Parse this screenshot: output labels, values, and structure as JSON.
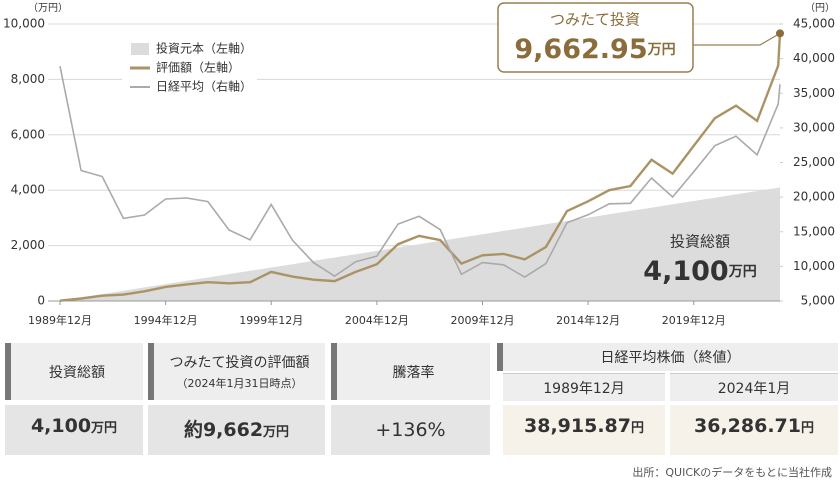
{
  "chart_data": {
    "type": "line",
    "left_axis_unit": "（万円）",
    "right_axis_unit": "（円）",
    "x": [
      "1989-12",
      "1990-12",
      "1991-12",
      "1992-12",
      "1993-12",
      "1994-12",
      "1995-12",
      "1996-12",
      "1997-12",
      "1998-12",
      "1999-12",
      "2000-12",
      "2001-12",
      "2002-12",
      "2003-12",
      "2004-12",
      "2005-12",
      "2006-12",
      "2007-12",
      "2008-12",
      "2009-12",
      "2010-12",
      "2011-12",
      "2012-12",
      "2013-12",
      "2014-12",
      "2015-12",
      "2016-12",
      "2017-12",
      "2018-12",
      "2019-12",
      "2020-12",
      "2021-12",
      "2022-12",
      "2023-12",
      "2024-01"
    ],
    "xlim": [
      "1989-12",
      "2024-01"
    ],
    "xticks": [
      {
        "value": "1989-12",
        "label": "1989年12月"
      },
      {
        "value": "1994-12",
        "label": "1994年12月"
      },
      {
        "value": "1999-12",
        "label": "1999年12月"
      },
      {
        "value": "2004-12",
        "label": "2004年12月"
      },
      {
        "value": "2009-12",
        "label": "2009年12月"
      },
      {
        "value": "2014-12",
        "label": "2014年12月"
      },
      {
        "value": "2019-12",
        "label": "2019年12月"
      }
    ],
    "ylim": [
      0,
      10000
    ],
    "yticks": [
      0,
      {
        "value": 2000,
        "label": "2,000"
      },
      {
        "value": 4000,
        "label": "4,000"
      },
      {
        "value": 6000,
        "label": "6,000"
      },
      {
        "value": 8000,
        "label": "8,000"
      },
      {
        "value": 10000,
        "label": "10,000"
      }
    ],
    "y2lim": [
      5000,
      45000
    ],
    "y2ticks": [
      {
        "value": 5000,
        "label": "5,000"
      },
      {
        "value": 10000,
        "label": "10,000"
      },
      {
        "value": 15000,
        "label": "15,000"
      },
      {
        "value": 20000,
        "label": "20,000"
      },
      {
        "value": 25000,
        "label": "25,000"
      },
      {
        "value": 30000,
        "label": "30,000"
      },
      {
        "value": 35000,
        "label": "35,000"
      },
      {
        "value": 40000,
        "label": "40,000"
      },
      {
        "value": 45000,
        "label": "45,000"
      }
    ],
    "grid": true,
    "legend": "upper left",
    "series": [
      {
        "name": "投資元本（左軸）",
        "style": "area",
        "color": "#dcdcdc",
        "values": [
          10,
          130,
          250,
          370,
          490,
          610,
          730,
          850,
          970,
          1090,
          1210,
          1330,
          1450,
          1570,
          1690,
          1810,
          1930,
          2050,
          2170,
          2290,
          2410,
          2530,
          2650,
          2770,
          2890,
          3010,
          3130,
          3250,
          3370,
          3490,
          3610,
          3730,
          3850,
          3970,
          4090,
          4100
        ]
      },
      {
        "name": "評価額（左軸）",
        "style": "line",
        "color": "#ab9366",
        "values": [
          10,
          90,
          190,
          230,
          350,
          510,
          600,
          680,
          640,
          680,
          1050,
          880,
          770,
          720,
          1050,
          1330,
          2050,
          2350,
          2200,
          1350,
          1650,
          1700,
          1500,
          1950,
          3250,
          3600,
          4000,
          4150,
          5100,
          4600,
          5600,
          6600,
          7050,
          6500,
          8500,
          9662.95
        ]
      },
      {
        "name": "日経平均（右軸）",
        "style": "line",
        "color": "#aaaaaa",
        "axis": "y2",
        "values": [
          38916,
          23849,
          22984,
          16925,
          17417,
          19723,
          19868,
          19361,
          15259,
          13842,
          18934,
          13786,
          10543,
          8579,
          10677,
          11489,
          16111,
          17226,
          15308,
          8860,
          10546,
          10229,
          8455,
          10395,
          16291,
          17451,
          19034,
          19114,
          22765,
          20015,
          23657,
          27444,
          28792,
          26095,
          33464,
          36287
        ]
      }
    ],
    "annotations": {
      "callout_title": "つみたて投資",
      "callout_value": "9,662.95",
      "callout_unit": "万円",
      "total_title": "投資総額",
      "total_value": "4,100",
      "total_unit": "万円"
    }
  },
  "summary_table": {
    "cells": [
      {
        "header": "投資総額",
        "value": "4,100",
        "unit": "万円"
      },
      {
        "header": "つみたて投資の評価額",
        "note": "（2024年1月31日時点）",
        "value": "約9,662",
        "unit": "万円"
      },
      {
        "header": "騰落率",
        "value": "+136%"
      }
    ]
  },
  "nikkei_table": {
    "title": "日経平均株価（終値）",
    "columns": [
      {
        "label": "1989年12月",
        "value": "38,915.87",
        "unit": "円"
      },
      {
        "label": "2024年1月",
        "value": "36,286.71",
        "unit": "円"
      }
    ]
  },
  "source": "出所：QUICKのデータをもとに当社作成"
}
